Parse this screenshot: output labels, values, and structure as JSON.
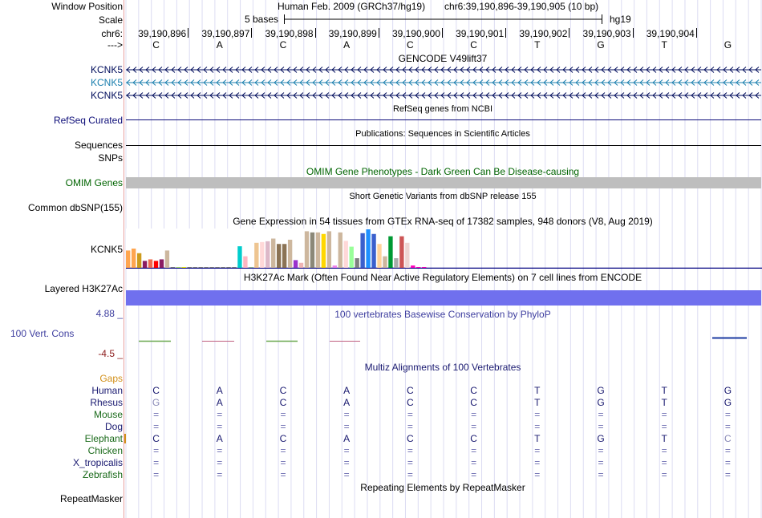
{
  "colors": {
    "navy": "#000080",
    "gencode_kcnk5": "#000d5c",
    "gencode_alt": "#1b7fae",
    "refseq": "#0c0c78",
    "omim_label": "#006400",
    "omim_bar": "#bebebe",
    "h3k27ac": "#7070ee",
    "cons_label": "#4040a0",
    "cons_min": "#8b1a1a",
    "gaps": "#d2901a",
    "mammal": "#191970",
    "green_species": "#1a6a1a",
    "grid": "#d8d8f0"
  },
  "header": {
    "window_position_label": "Window Position",
    "assembly": "Human Feb. 2009 (GRCh37/hg19)",
    "position": "chr6:39,190,896-39,190,905 (10 bp)",
    "scale_label": "Scale",
    "scale_text": "5 bases",
    "scale_db": "hg19",
    "chrom_label": "chr6:",
    "strand_label": "--->",
    "coordinates": [
      "39,190,896",
      "39,190,897",
      "39,190,898",
      "39,190,899",
      "39,190,900",
      "39,190,901",
      "39,190,902",
      "39,190,903",
      "39,190,904"
    ],
    "bases": [
      "C",
      "A",
      "C",
      "A",
      "C",
      "C",
      "T",
      "G",
      "T",
      "G"
    ]
  },
  "tracks": {
    "gencode_title": "GENCODE V49lift37",
    "gencode_labels": [
      "KCNK5",
      "KCNK5",
      "KCNK5"
    ],
    "refseq_title": "RefSeq genes from NCBI",
    "refseq_label": "RefSeq Curated",
    "pubs_title": "Publications: Sequences in Scientific Articles",
    "pubs_label": "Sequences",
    "snps_label": "SNPs",
    "omim_title": "OMIM Gene Phenotypes - Dark Green Can Be Disease-causing",
    "omim_label": "OMIM Genes",
    "dbsnp_title": "Short Genetic Variants from dbSNP release 155",
    "dbsnp_label": "Common dbSNP(155)",
    "gtex_title": "Gene Expression in 54 tissues from GTEx RNA-seq of 17382 samples, 948 donors (V8, Aug 2019)",
    "gtex_label": "KCNK5",
    "h3k27ac_title": "H3K27Ac Mark (Often Found Near Active Regulatory Elements) on 7 cell lines from ENCODE",
    "h3k27ac_label": "Layered H3K27Ac",
    "cons_title": "100 vertebrates Basewise Conservation by PhyloP",
    "cons_label": "100 Vert. Cons",
    "cons_max": "4.88 _",
    "cons_min": "-4.5 _",
    "multiz_title": "Multiz Alignments of 100 Vertebrates",
    "gaps_label": "Gaps",
    "repeat_title": "Repeating Elements by RepeatMasker",
    "repeat_label": "RepeatMasker"
  },
  "alignment": [
    {
      "species": "Human",
      "bases": [
        "C",
        "A",
        "C",
        "A",
        "C",
        "C",
        "T",
        "G",
        "T",
        "G"
      ]
    },
    {
      "species": "Rhesus",
      "bases": [
        "G",
        "A",
        "C",
        "A",
        "C",
        "C",
        "T",
        "G",
        "T",
        "G"
      ]
    },
    {
      "species": "Mouse",
      "bases": [
        "=",
        "=",
        "=",
        "=",
        "=",
        "=",
        "=",
        "=",
        "=",
        "="
      ]
    },
    {
      "species": "Dog",
      "bases": [
        "=",
        "=",
        "=",
        "=",
        "=",
        "=",
        "=",
        "=",
        "=",
        "="
      ]
    },
    {
      "species": "Elephant",
      "bases": [
        "C",
        "A",
        "C",
        "A",
        "C",
        "C",
        "T",
        "G",
        "T",
        "C"
      ]
    },
    {
      "species": "Chicken",
      "bases": [
        "=",
        "=",
        "=",
        "=",
        "=",
        "=",
        "=",
        "=",
        "=",
        "="
      ]
    },
    {
      "species": "X_tropicalis",
      "bases": [
        "=",
        "=",
        "=",
        "=",
        "=",
        "=",
        "=",
        "=",
        "=",
        "="
      ]
    },
    {
      "species": "Zebrafish",
      "bases": [
        "=",
        "=",
        "=",
        "=",
        "=",
        "=",
        "=",
        "=",
        "=",
        "="
      ]
    }
  ],
  "gtex_levels": [
    0.45,
    0.5,
    0.38,
    0.18,
    0.22,
    0.18,
    0.22,
    0.45,
    0.02,
    0.02,
    0.02,
    0.02,
    0.02,
    0.02,
    0.02,
    0.02,
    0.02,
    0.02,
    0.02,
    0.02,
    0.56,
    0.3,
    0.02,
    0.65,
    0.67,
    0.69,
    0.76,
    0.62,
    0.62,
    0.73,
    0.2,
    0.13,
    0.95,
    0.92,
    0.92,
    0.88,
    0.95,
    0.06,
    0.92,
    0.7,
    0.55,
    0.25,
    0.9,
    1.0,
    0.88,
    0.62,
    0.3,
    0.82,
    0.25,
    0.82,
    0.65,
    0.06,
    0.02,
    0.02
  ],
  "gtex_colors": [
    "#FFA54F",
    "#FFA54F",
    "#CD9B1D",
    "#8B1C62",
    "#EE6A50",
    "#FF0000",
    "#8B1C62",
    "#CDB79E",
    "#7A7A7A",
    "#A6D96A",
    "#EEEE00",
    "#7A7A7A",
    "#7A7A7A",
    "#7A7A7A",
    "#7A7A7A",
    "#7A7A7A",
    "#7A7A7A",
    "#7A7A7A",
    "#7A7A7A",
    "#7A7A7A",
    "#00CDCD",
    "#FFB6C1",
    "#8FBC8F",
    "#EEC591",
    "#FFD8D8",
    "#DDB8C8",
    "#CDB79E",
    "#8B7355",
    "#8B7355",
    "#CDB79E",
    "#9A32CD",
    "#EEB4B4",
    "#CDB79E",
    "#8B8878",
    "#CDB79E",
    "#FFD700",
    "#CDB79E",
    "#EE82EE",
    "#CDB79E",
    "#FFD8D8",
    "#99FF99",
    "#7F7F7F",
    "#3A5FCD",
    "#1E90FF",
    "#3A5FCD",
    "#FFD39B",
    "#CDB79E",
    "#009933",
    "#ABABAB",
    "#CD5555",
    "#EED5D2",
    "#FF00BB",
    "#FF00BB",
    "#FF00BB"
  ]
}
